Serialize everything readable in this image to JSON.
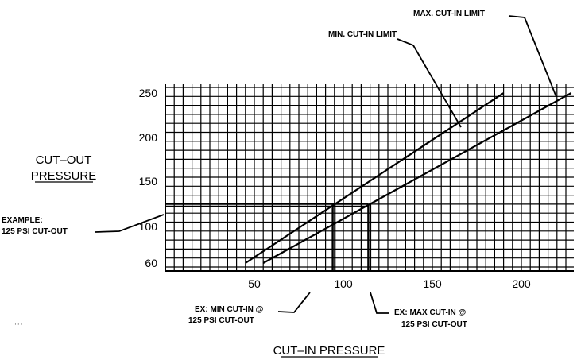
{
  "chart_data": {
    "type": "line",
    "title": "",
    "xlabel": "CUT–IN PRESSURE",
    "ylabel": [
      "CUT–OUT",
      "PRESSURE"
    ],
    "xlim": [
      0,
      230
    ],
    "ylim": [
      45,
      255
    ],
    "x_ticks": [
      50,
      100,
      150,
      200
    ],
    "y_ticks": [
      60,
      100,
      150,
      200,
      250
    ],
    "grid": true,
    "series": [
      {
        "name": "MIN. CUT-IN LIMIT",
        "points": [
          [
            45,
            60
          ],
          [
            190,
            250
          ]
        ]
      },
      {
        "name": "MAX. CUT-IN LIMIT",
        "points": [
          [
            55,
            60
          ],
          [
            228,
            250
          ]
        ]
      }
    ],
    "example": {
      "cutout": 125,
      "min_cutin": 94,
      "max_cutin": 114
    },
    "annotations": {
      "example_left": [
        "EXAMPLE:",
        "125 PSI CUT-OUT"
      ],
      "ex_min": [
        "EX:  MIN CUT-IN  @",
        "125 PSI CUT-OUT"
      ],
      "ex_max": [
        "EX:  MAX CUT-IN  @",
        "125 PSI CUT-OUT"
      ]
    },
    "colors": {
      "ink": "#000000",
      "background": "#ffffff"
    }
  },
  "misc": {
    "cursor_glyph": "···"
  }
}
